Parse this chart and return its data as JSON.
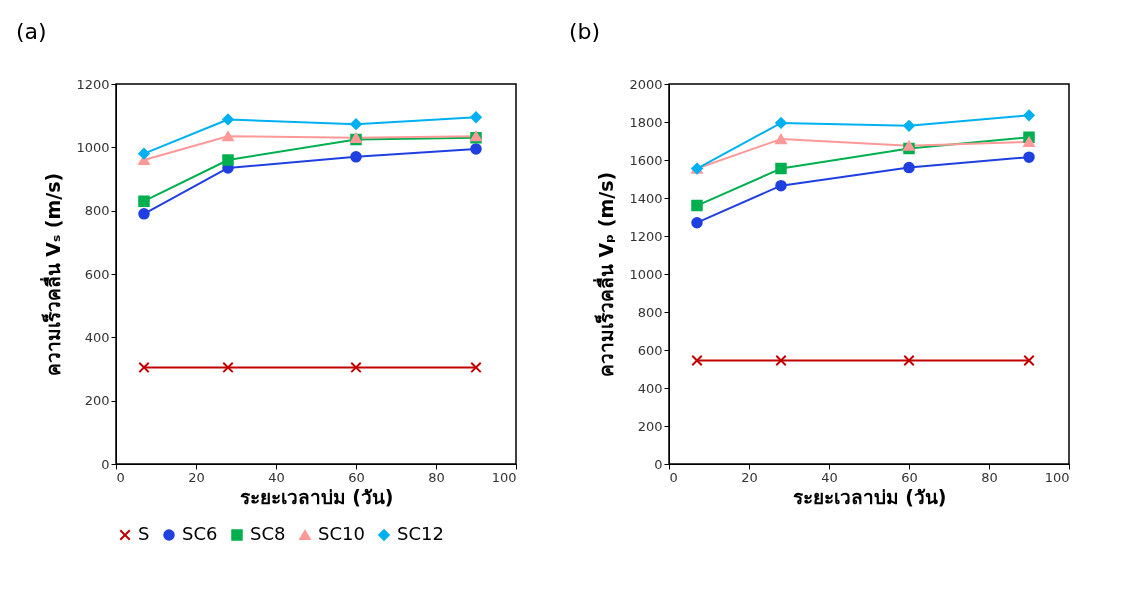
{
  "chart_data": [
    {
      "type": "line",
      "title": "(a)",
      "xlabel": "ระยะเวลาบ่ม (วัน)",
      "ylabel": "ความเร็วคลื่น Vₛ (m/s)",
      "x": [
        7,
        28,
        60,
        90
      ],
      "xlim": [
        0,
        100
      ],
      "xticks": [
        0,
        20,
        40,
        60,
        80,
        100
      ],
      "ylim": [
        0,
        1200
      ],
      "yticks": [
        0,
        200,
        400,
        600,
        800,
        1000,
        1200
      ],
      "grid": false,
      "legend": "bottom",
      "series": [
        {
          "name": "S",
          "color": "#c00000",
          "marker": "cross",
          "values": [
            305,
            305,
            305,
            305
          ]
        },
        {
          "name": "SC6",
          "color": "#1f3fe0",
          "marker": "circle",
          "values": [
            790,
            935,
            970,
            995
          ]
        },
        {
          "name": "SC8",
          "color": "#00b050",
          "marker": "square",
          "values": [
            830,
            960,
            1025,
            1030
          ]
        },
        {
          "name": "SC10",
          "color": "#ff9999",
          "marker": "triangle",
          "values": [
            960,
            1035,
            1030,
            1035
          ]
        },
        {
          "name": "SC12",
          "color": "#00b0f0",
          "marker": "diamond",
          "values": [
            980,
            1088,
            1073,
            1095
          ]
        }
      ]
    },
    {
      "type": "line",
      "title": "(b)",
      "xlabel": "ระยะเวลาบ่ม (วัน)",
      "ylabel": "ความเร็วคลื่น Vₚ (m/s)",
      "x": [
        7,
        28,
        60,
        90
      ],
      "xlim": [
        0,
        100
      ],
      "xticks": [
        0,
        20,
        40,
        60,
        80,
        100
      ],
      "ylim": [
        0,
        2000
      ],
      "yticks": [
        0,
        200,
        400,
        600,
        800,
        1000,
        1200,
        1400,
        1600,
        1800,
        2000
      ],
      "grid": false,
      "legend": "bottom",
      "series": [
        {
          "name": "S",
          "color": "#c00000",
          "marker": "cross",
          "values": [
            545,
            545,
            545,
            545
          ]
        },
        {
          "name": "SC6",
          "color": "#1f3fe0",
          "marker": "circle",
          "values": [
            1270,
            1465,
            1560,
            1615
          ]
        },
        {
          "name": "SC8",
          "color": "#00b050",
          "marker": "square",
          "values": [
            1360,
            1555,
            1660,
            1720
          ]
        },
        {
          "name": "SC10",
          "color": "#ff9999",
          "marker": "triangle",
          "values": [
            1555,
            1710,
            1675,
            1695
          ]
        },
        {
          "name": "SC12",
          "color": "#00b0f0",
          "marker": "diamond",
          "values": [
            1555,
            1795,
            1780,
            1835
          ]
        }
      ]
    }
  ]
}
